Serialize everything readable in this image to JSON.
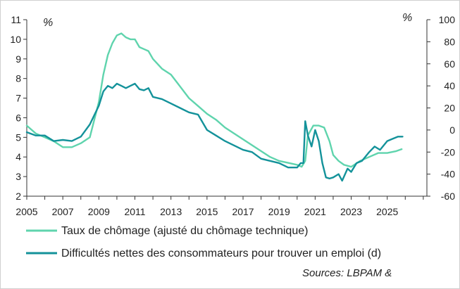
{
  "chart_data": {
    "type": "line",
    "title": "",
    "xlabel": "",
    "x_ticks": [
      "2005",
      "2007",
      "2009",
      "2011",
      "2013",
      "2015",
      "2017",
      "2019",
      "2021",
      "2023",
      "2025"
    ],
    "xlim": [
      2005,
      2027.2
    ],
    "left_axis": {
      "unit": "%",
      "ylim": [
        2,
        11
      ],
      "ticks": [
        "2",
        "3",
        "4",
        "5",
        "6",
        "7",
        "8",
        "9",
        "10",
        "11"
      ]
    },
    "right_axis": {
      "unit": "%",
      "ylim": [
        -60,
        100
      ],
      "ticks": [
        "-60",
        "-40",
        "-20",
        "0",
        "20",
        "40",
        "60",
        "80",
        "100"
      ]
    },
    "series": [
      {
        "name": "Taux de chômage (ajusté du chômage technique)",
        "axis": "left",
        "color": "#5fd4ad",
        "x": [
          2005.0,
          2005.5,
          2006.0,
          2006.5,
          2007.0,
          2007.5,
          2008.0,
          2008.5,
          2009.0,
          2009.25,
          2009.5,
          2009.75,
          2010.0,
          2010.25,
          2010.5,
          2010.75,
          2011.0,
          2011.25,
          2011.5,
          2011.75,
          2012.0,
          2012.5,
          2013.0,
          2013.5,
          2014.0,
          2014.5,
          2015.0,
          2015.5,
          2016.0,
          2016.5,
          2017.0,
          2017.5,
          2018.0,
          2018.5,
          2019.0,
          2019.5,
          2020.0,
          2020.25,
          2020.45,
          2020.6,
          2020.9,
          2021.2,
          2021.5,
          2021.8,
          2022.0,
          2022.3,
          2022.6,
          2023.0,
          2023.5,
          2024.0,
          2024.5,
          2025.0,
          2025.5,
          2025.8
        ],
        "values": [
          5.6,
          5.2,
          5.0,
          4.8,
          4.5,
          4.5,
          4.7,
          5.0,
          6.8,
          8.2,
          9.2,
          9.8,
          10.2,
          10.3,
          10.1,
          10.0,
          10.0,
          9.6,
          9.5,
          9.4,
          9.0,
          8.5,
          8.2,
          7.6,
          7.0,
          6.6,
          6.2,
          5.9,
          5.5,
          5.2,
          4.9,
          4.6,
          4.3,
          4.0,
          3.8,
          3.7,
          3.6,
          3.5,
          3.8,
          5.1,
          5.6,
          5.6,
          5.5,
          4.8,
          4.1,
          3.8,
          3.6,
          3.5,
          3.8,
          4.0,
          4.2,
          4.2,
          4.3,
          4.4
        ]
      },
      {
        "name": "Difficultés nettes des consommateurs pour trouver un emploi (d)",
        "axis": "right",
        "color": "#13929a",
        "x": [
          2005.0,
          2005.5,
          2006.0,
          2006.5,
          2007.0,
          2007.5,
          2008.0,
          2008.5,
          2009.0,
          2009.25,
          2009.5,
          2009.75,
          2010.0,
          2010.25,
          2010.5,
          2010.75,
          2011.0,
          2011.25,
          2011.5,
          2011.75,
          2012.0,
          2012.5,
          2013.0,
          2013.5,
          2014.0,
          2014.5,
          2015.0,
          2015.5,
          2016.0,
          2016.5,
          2017.0,
          2017.5,
          2018.0,
          2018.5,
          2019.0,
          2019.5,
          2020.0,
          2020.2,
          2020.35,
          2020.45,
          2020.6,
          2020.8,
          2021.0,
          2021.2,
          2021.4,
          2021.6,
          2021.8,
          2022.0,
          2022.3,
          2022.5,
          2022.8,
          2023.0,
          2023.3,
          2023.6,
          2024.0,
          2024.3,
          2024.6,
          2025.0,
          2025.3,
          2025.6,
          2025.85
        ],
        "values": [
          -2,
          -5,
          -5,
          -10,
          -9,
          -10,
          -6,
          5,
          22,
          35,
          40,
          38,
          42,
          40,
          38,
          40,
          42,
          37,
          36,
          38,
          30,
          28,
          24,
          20,
          16,
          14,
          0,
          -5,
          -10,
          -14,
          -18,
          -20,
          -26,
          -28,
          -30,
          -34,
          -34,
          -30,
          -30,
          8,
          -5,
          -15,
          0,
          -10,
          -30,
          -43,
          -44,
          -43,
          -40,
          -46,
          -35,
          -38,
          -30,
          -28,
          -20,
          -15,
          -18,
          -10,
          -8,
          -6,
          -6
        ]
      }
    ],
    "legend_position": "bottom",
    "grid": false
  },
  "legend": {
    "items": [
      {
        "label": "Taux de chômage (ajusté du chômage technique)",
        "color": "#5fd4ad"
      },
      {
        "label": "Difficultés nettes des consommateurs pour trouver un emploi (d)",
        "color": "#13929a"
      }
    ]
  },
  "source_text": "Sources: LBPAM &"
}
